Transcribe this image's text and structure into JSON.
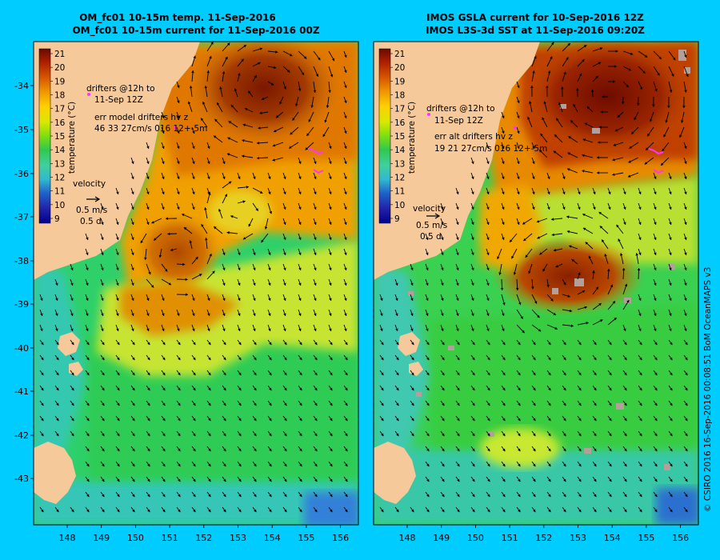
{
  "colors": {
    "page_background": "#00ccff",
    "land": "#f6c99a",
    "missing_data": "#b4a09a",
    "drifter": "#ff33ff",
    "arrow": "#000000"
  },
  "credit": "© CSIRO 2016   16-Sep-2016 00:08:51 BoM OceanMAPS v3",
  "colorbar": {
    "ticks": [
      "21",
      "20",
      "19",
      "18",
      "17",
      "16",
      "15",
      "14",
      "13",
      "12",
      "11",
      "10",
      "9"
    ],
    "label": "temperature (°C)",
    "stops": [
      "#6a0a00",
      "#b02000",
      "#d85a00",
      "#f09a00",
      "#ffd000",
      "#d8e800",
      "#7ede10",
      "#30c850",
      "#40d0a0",
      "#30b8d0",
      "#2060c8",
      "#2020a8",
      "#00008c"
    ]
  },
  "axes": {
    "lon_ticks": [
      "148",
      "149",
      "150",
      "151",
      "152",
      "153",
      "154",
      "155",
      "156"
    ],
    "lat_ticks": [
      "-34",
      "-35",
      "-36",
      "-37",
      "-38",
      "-39",
      "-40",
      "-41",
      "-42",
      "-43"
    ],
    "lon_range": [
      147.2,
      156.5
    ],
    "lat_range": [
      -33.2,
      -43.9
    ]
  },
  "panels": [
    {
      "id": "model",
      "title_line1": "OM_fc01 10-15m temp. 11-Sep-2016",
      "title_line2": "OM_fc01 10-15m current for 11-Sep-2016 00Z",
      "legend": {
        "drifters_line1": "drifters @12h to",
        "drifters_line2": "11-Sep 12Z",
        "err_line1": "err model drifters hv z",
        "err_line2": "46 33 27cm/s 016 12+-5m",
        "velocity_title": "velocity",
        "velocity_speed": "0.5 m/s",
        "velocity_time": "0.5 d"
      }
    },
    {
      "id": "observed",
      "title_line1": "IMOS GSLA current for 10-Sep-2016 12Z",
      "title_line2": "IMOS L3S-3d SST at 11-Sep-2016 09:20Z",
      "legend": {
        "drifters_line1": "drifters @12h to",
        "drifters_line2": "11-Sep 12Z",
        "err_line1": "err alt drifters hv z",
        "err_line2": "19 21 27cm/s 016 12+-5m",
        "velocity_title": "velocity",
        "velocity_speed": "0.5 m/s",
        "velocity_time": "0.5 d"
      }
    }
  ]
}
